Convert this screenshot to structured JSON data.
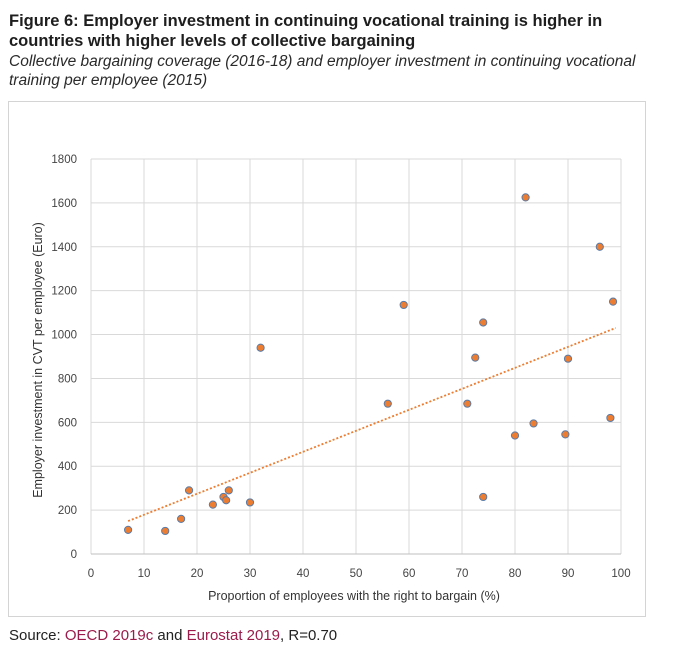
{
  "title": "Figure 6: Employer investment in continuing vocational training is higher in countries with higher levels of collective bargaining",
  "subtitle": "Collective bargaining coverage (2016-18) and employer investment in continuing vocational training per employee (2015)",
  "source": {
    "prefix": "Source: ",
    "link1": "OECD 2019c",
    "mid": " and ",
    "link2": "Eurostat 2019",
    "suffix": ", R=0.70"
  },
  "colors": {
    "marker_fill": "#ED7D31",
    "marker_edge": "#5B7BA6",
    "trendline": "#ED7D31",
    "grid": "#d9d9d9",
    "link": "#9b1b4a"
  },
  "chart_data": {
    "type": "scatter",
    "xlabel": "Proportion of employees with the right to bargain (%)",
    "ylabel": "Employer investment in CVT per employee (Euro)",
    "xlim": [
      0,
      100
    ],
    "ylim": [
      0,
      1800
    ],
    "xticks": [
      0,
      10,
      20,
      30,
      40,
      50,
      60,
      70,
      80,
      90,
      100
    ],
    "yticks": [
      0,
      200,
      400,
      600,
      800,
      1000,
      1200,
      1400,
      1600,
      1800
    ],
    "grid": true,
    "trendline": {
      "type": "linear",
      "x": [
        7,
        99
      ],
      "y": [
        150,
        1030
      ]
    },
    "points": [
      {
        "x": 7,
        "y": 110
      },
      {
        "x": 14,
        "y": 105
      },
      {
        "x": 17,
        "y": 160
      },
      {
        "x": 18.5,
        "y": 290
      },
      {
        "x": 23,
        "y": 225
      },
      {
        "x": 25,
        "y": 260
      },
      {
        "x": 25.5,
        "y": 245
      },
      {
        "x": 26,
        "y": 290
      },
      {
        "x": 30,
        "y": 235
      },
      {
        "x": 32,
        "y": 940
      },
      {
        "x": 56,
        "y": 685
      },
      {
        "x": 59,
        "y": 1135
      },
      {
        "x": 71,
        "y": 685
      },
      {
        "x": 72.5,
        "y": 895
      },
      {
        "x": 74,
        "y": 1055
      },
      {
        "x": 74,
        "y": 260
      },
      {
        "x": 80,
        "y": 540
      },
      {
        "x": 82,
        "y": 1625
      },
      {
        "x": 83.5,
        "y": 595
      },
      {
        "x": 89.5,
        "y": 545
      },
      {
        "x": 90,
        "y": 890
      },
      {
        "x": 96,
        "y": 1400
      },
      {
        "x": 98,
        "y": 620
      },
      {
        "x": 98.5,
        "y": 1150
      }
    ]
  }
}
